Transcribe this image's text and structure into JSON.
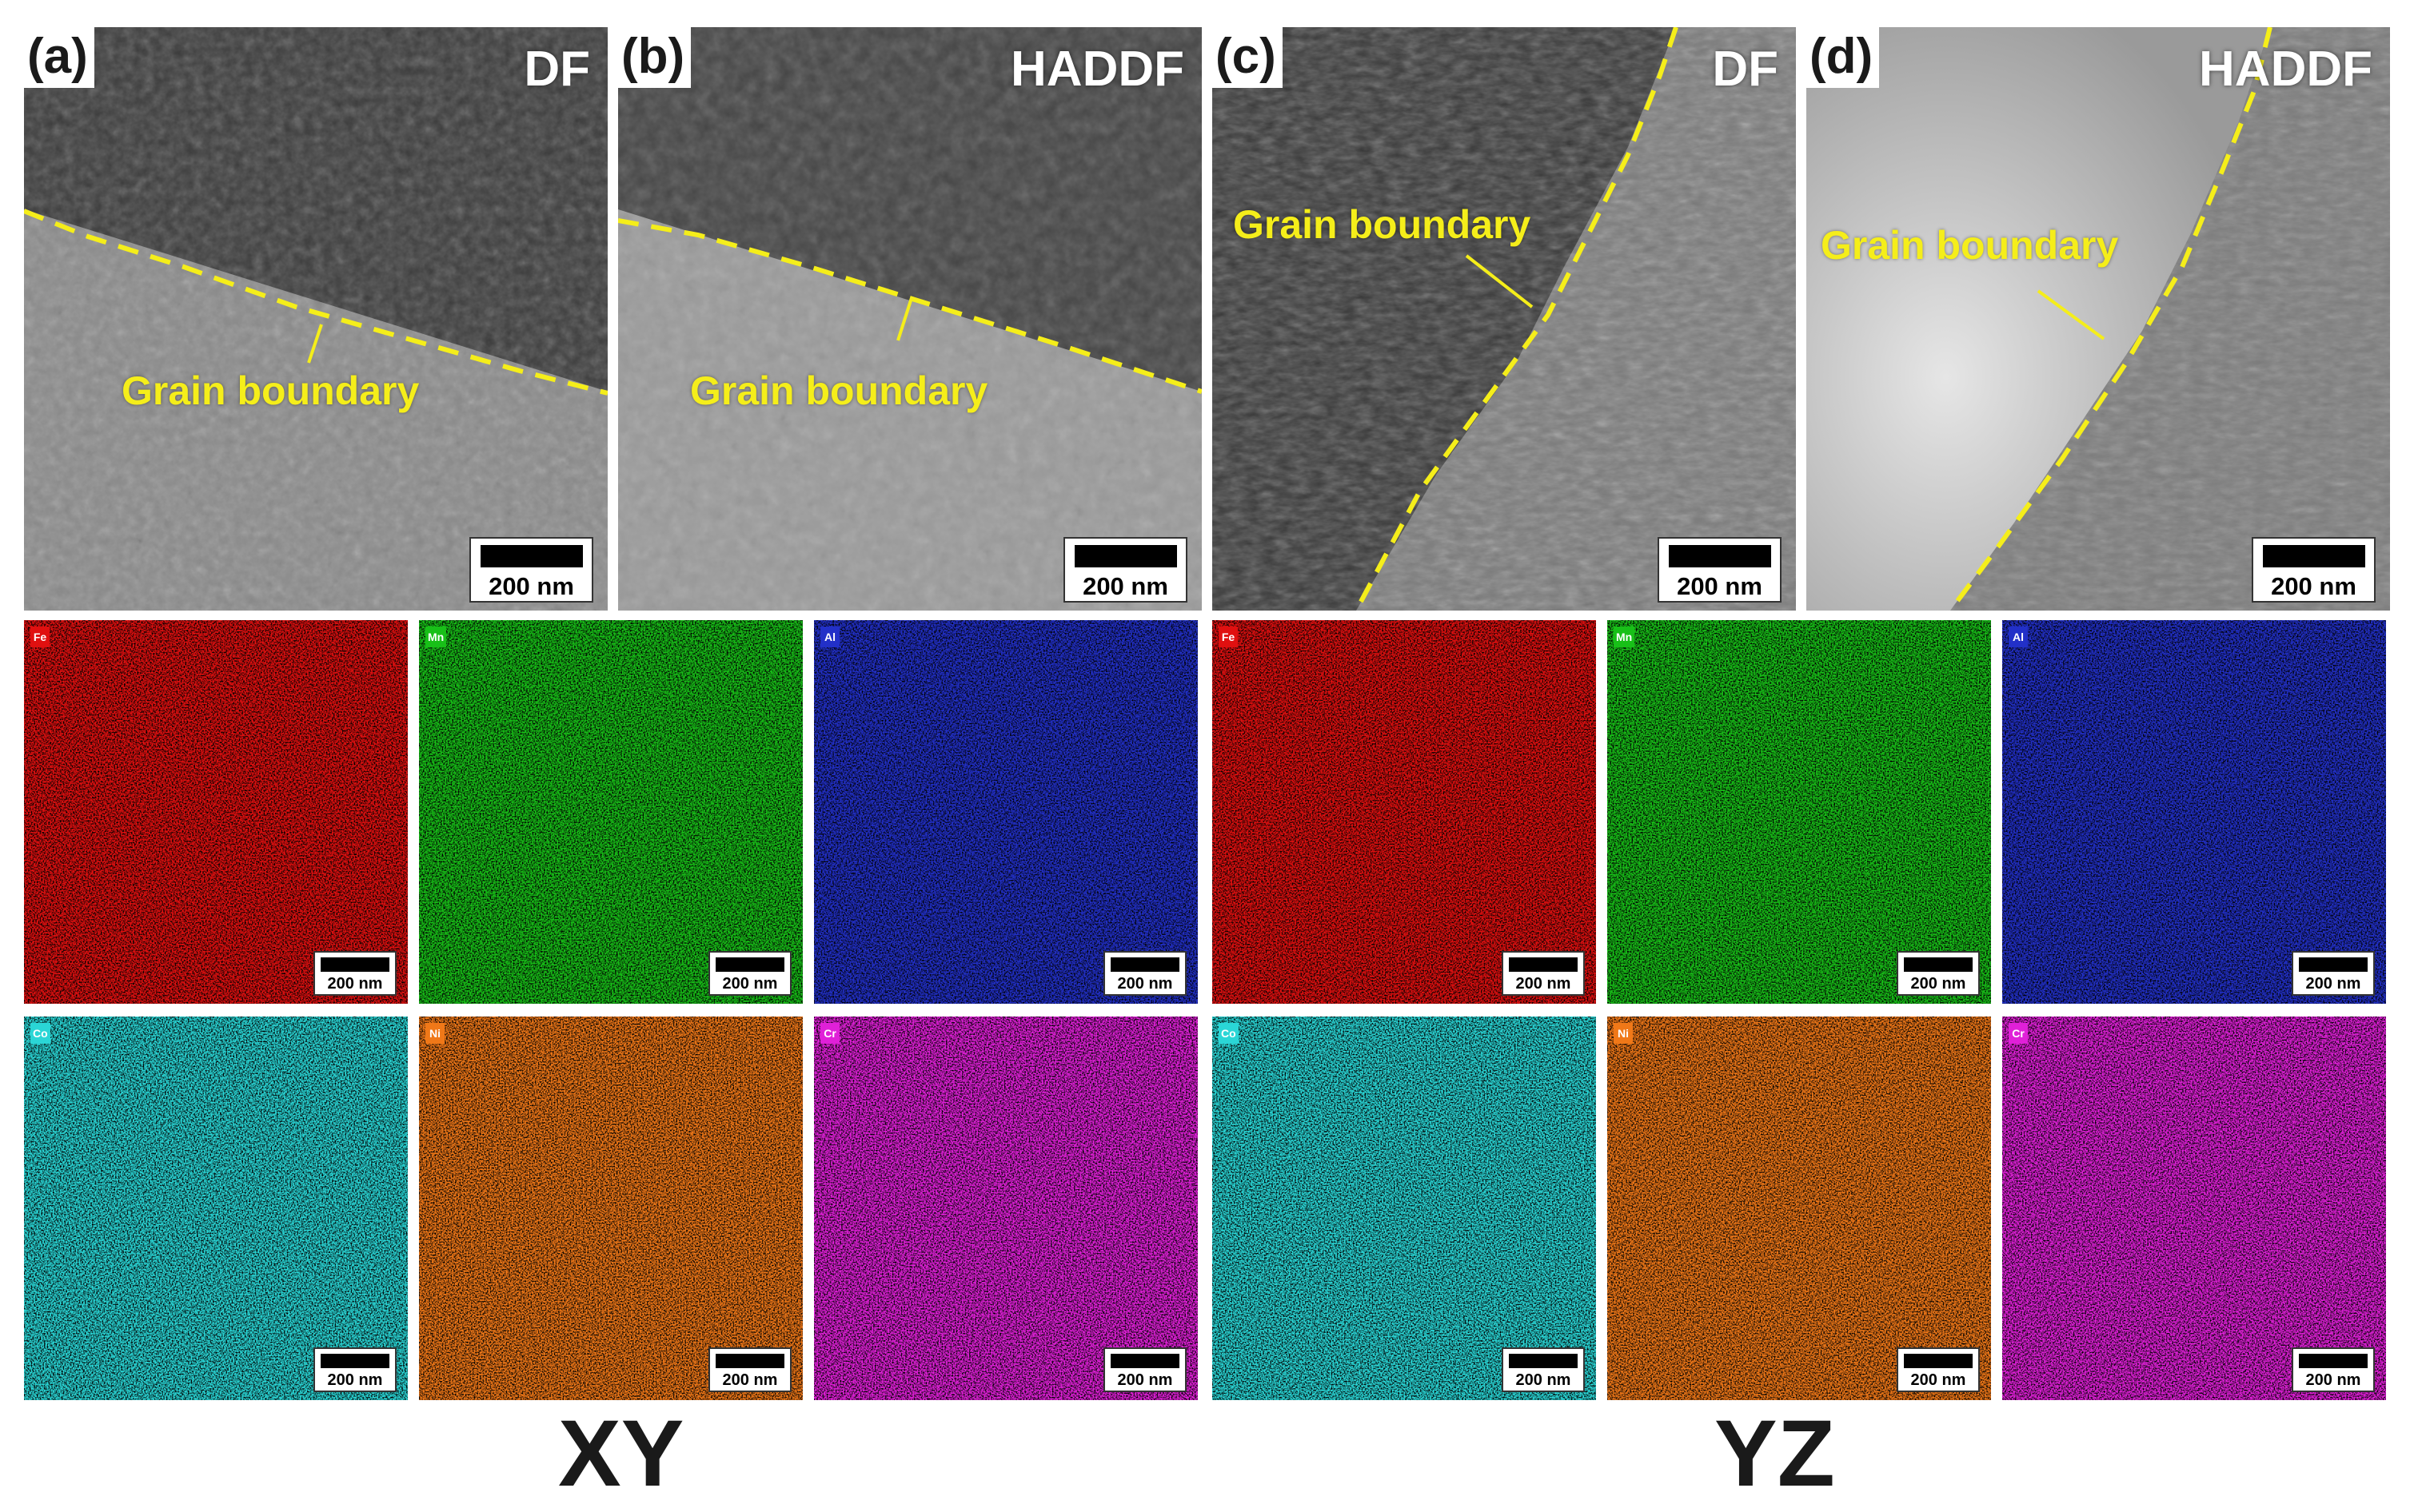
{
  "tem_panels": [
    {
      "letter": "(a)",
      "mode": "DF",
      "grain_label": "Grain boundary",
      "scale": "200 nm"
    },
    {
      "letter": "(b)",
      "mode": "HADDF",
      "grain_label": "Grain boundary",
      "scale": "200 nm"
    },
    {
      "letter": "(c)",
      "mode": "DF",
      "grain_label": "Grain boundary",
      "scale": "200 nm"
    },
    {
      "letter": "(d)",
      "mode": "HADDF",
      "grain_label": "Grain boundary",
      "scale": "200 nm"
    }
  ],
  "eds_maps": {
    "XY": [
      {
        "element": "Fe",
        "color": "#e01010",
        "scale": "200 nm"
      },
      {
        "element": "Mn",
        "color": "#18c018",
        "scale": "200 nm"
      },
      {
        "element": "Al",
        "color": "#2230c8",
        "scale": "200 nm"
      },
      {
        "element": "Co",
        "color": "#2ad6d6",
        "scale": "200 nm"
      },
      {
        "element": "Ni",
        "color": "#f07818",
        "scale": "200 nm"
      },
      {
        "element": "Cr",
        "color": "#e020d8",
        "scale": "200 nm"
      }
    ],
    "YZ": [
      {
        "element": "Fe",
        "color": "#e01010",
        "scale": "200 nm"
      },
      {
        "element": "Mn",
        "color": "#18c018",
        "scale": "200 nm"
      },
      {
        "element": "Al",
        "color": "#2230c8",
        "scale": "200 nm"
      },
      {
        "element": "Co",
        "color": "#2ad6d6",
        "scale": "200 nm"
      },
      {
        "element": "Ni",
        "color": "#f07818",
        "scale": "200 nm"
      },
      {
        "element": "Cr",
        "color": "#e020d8",
        "scale": "200 nm"
      }
    ]
  },
  "orientation_labels": {
    "left": "XY",
    "right": "YZ"
  },
  "boundary_color": "#f5ee1a"
}
